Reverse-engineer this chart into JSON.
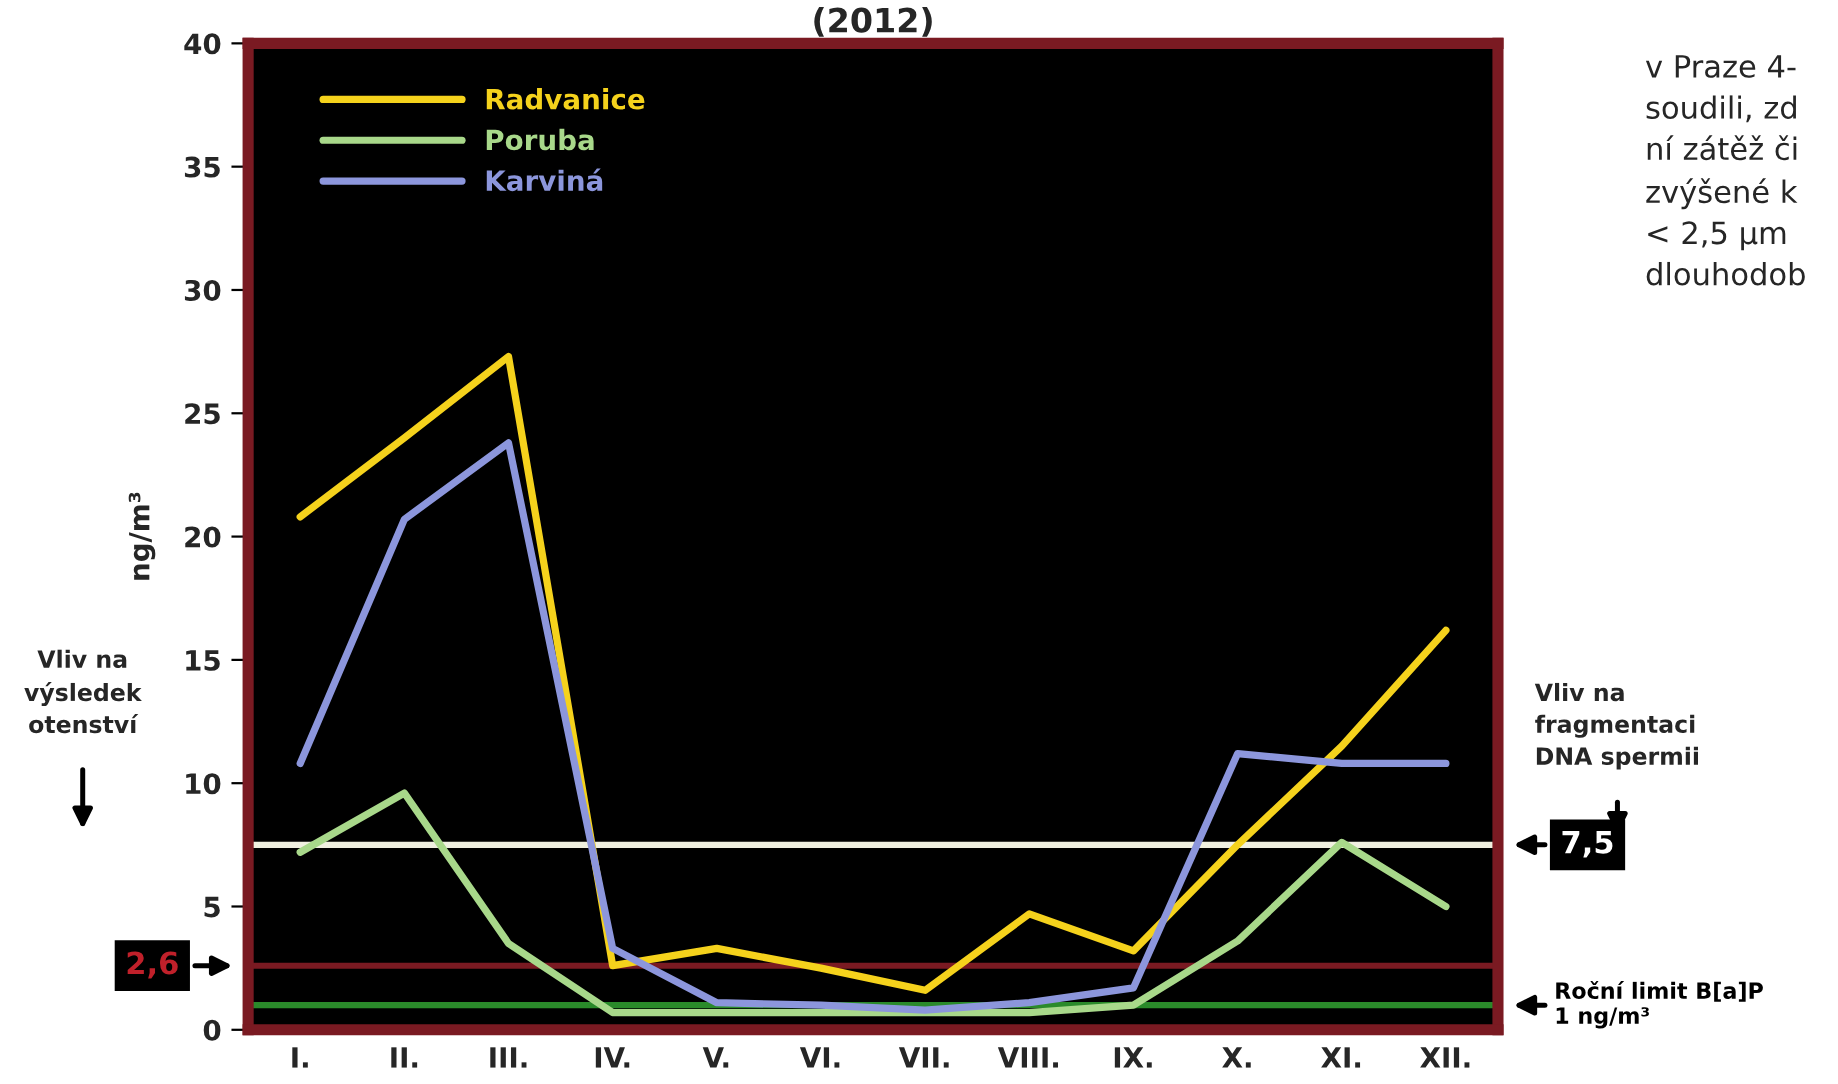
{
  "chart_data": {
    "type": "line",
    "title": "(2012)",
    "ylabel": "ng/m³",
    "categories": [
      "I.",
      "II.",
      "III.",
      "IV.",
      "V.",
      "VI.",
      "VII.",
      "VIII.",
      "IX.",
      "X.",
      "XI.",
      "XII."
    ],
    "series": [
      {
        "name": "Radvanice",
        "color": "#f5d21c",
        "values": [
          20.8,
          24.0,
          27.3,
          2.6,
          3.3,
          2.5,
          1.6,
          4.7,
          3.2,
          7.5,
          11.5,
          16.2
        ]
      },
      {
        "name": "Poruba",
        "color": "#a8d88a",
        "values": [
          7.2,
          9.6,
          3.5,
          0.7,
          0.7,
          0.7,
          0.7,
          0.7,
          1.0,
          3.6,
          7.6,
          5.0
        ]
      },
      {
        "name": "Karviná",
        "color": "#8c96dc",
        "values": [
          10.8,
          20.7,
          23.8,
          3.3,
          1.1,
          1.0,
          0.8,
          1.1,
          1.7,
          11.2,
          10.8,
          10.8
        ]
      }
    ],
    "ylim": [
      0,
      40
    ],
    "yticks": [
      0,
      5,
      10,
      15,
      20,
      25,
      30,
      35,
      40
    ],
    "ref_lines": [
      {
        "axis": "y",
        "value": 7.5,
        "label": "7,5",
        "color": "#f0f0e0"
      },
      {
        "axis": "y",
        "value": 2.6,
        "label": "2,6",
        "color": "#7a1a22"
      },
      {
        "axis": "y",
        "value": 1,
        "label": "Roční limit B[a]P\n1 ng/m³",
        "color": "#2a8a2a"
      }
    ],
    "annotations": [
      "Vliv na\nvýsledek\notenství",
      "Vliv na\nfragmentaci\nDNA spermii",
      "v Praze 4-\nsoudili, zd\nní zátěž či\nzvýšené k\n< 2,5 μm\ndlouhodob"
    ],
    "legend": "top left",
    "grid": false,
    "marker": "none",
    "line_style": "solid"
  }
}
